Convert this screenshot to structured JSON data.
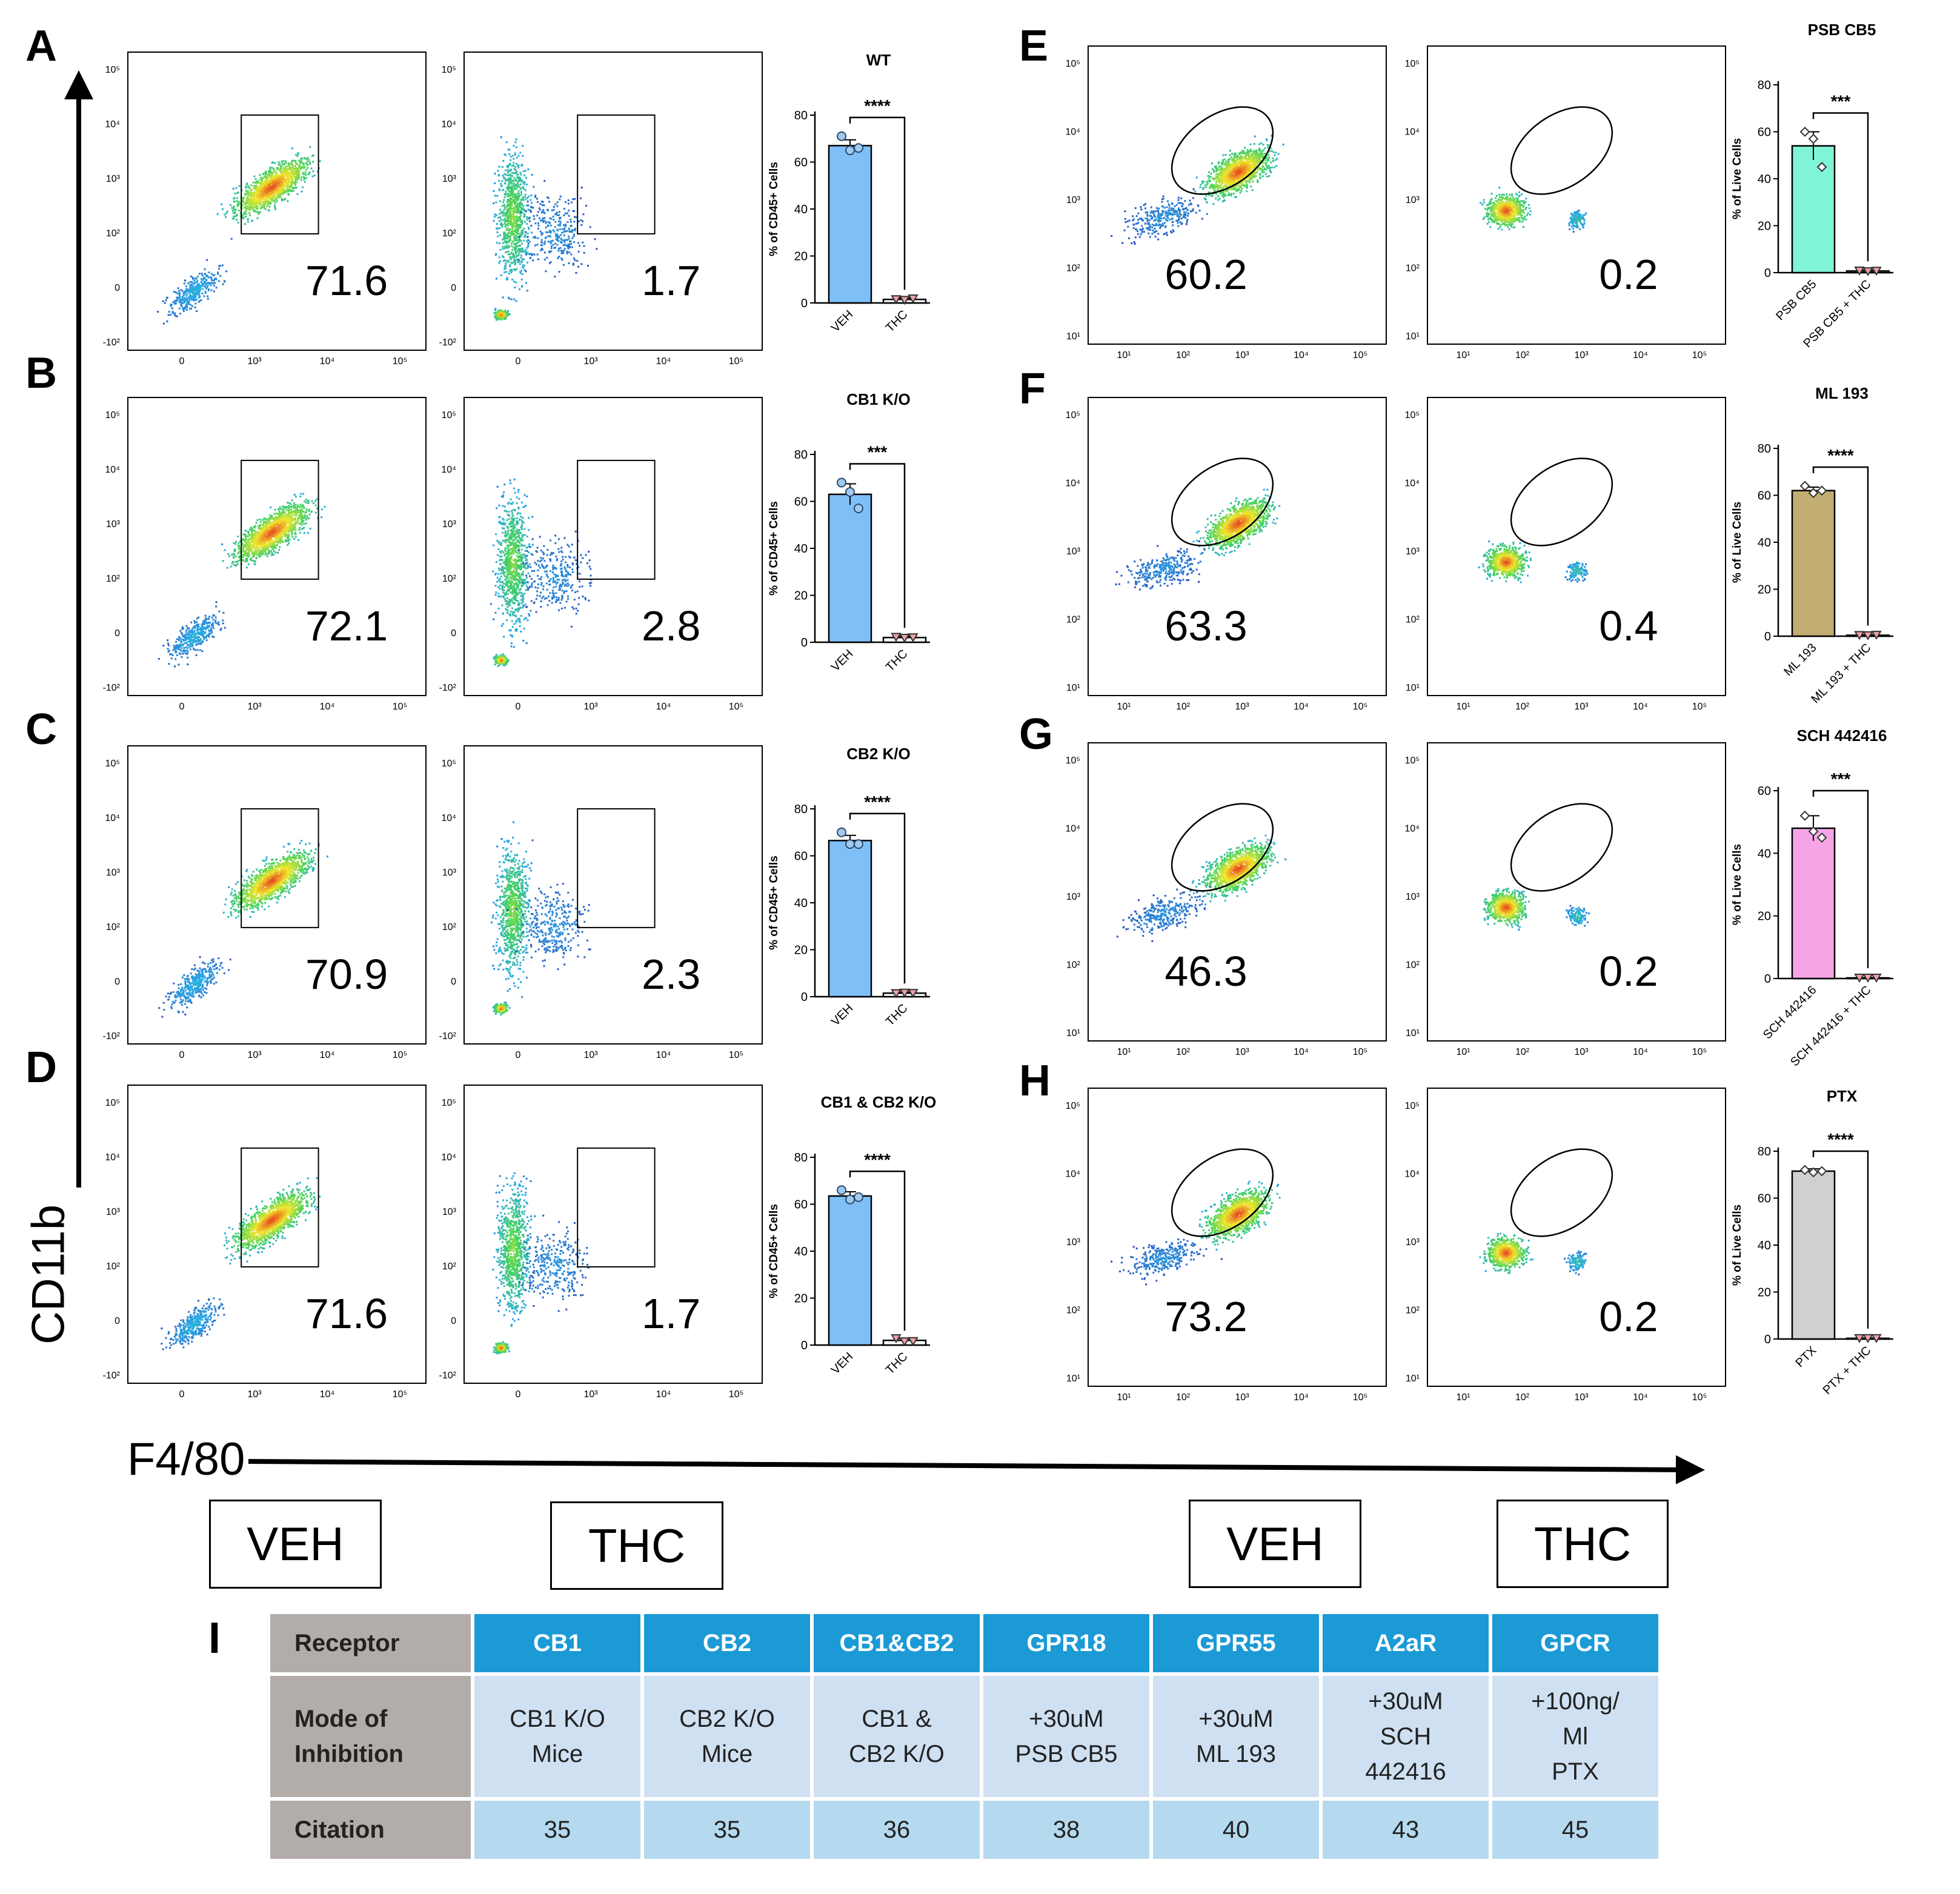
{
  "colors": {
    "WT": "#7fbff8",
    "CB1 K/O": "#7fbff8",
    "CB2 K/O": "#7fbff8",
    "CB1 & CB2 K/O": "#7fbff8",
    "PSB CB5": "#80f4d6",
    "ML 193": "#c2ad72",
    "SCH 442416": "#f6a6e6",
    "PTX": "#d0d0d0",
    "table_header": "#1b9ad6",
    "table_mode": "#cfe0f2",
    "table_cite": "#b5d9ef",
    "table_rowhead": "#b3adaa"
  },
  "axes": {
    "y_label": "CD11b",
    "x_label": "F4/80"
  },
  "conditions": {
    "left_veh": "VEH",
    "left_thc": "THC",
    "right_veh": "VEH",
    "right_thc": "THC"
  },
  "flow_ticks": {
    "y_left": [
      "10⁵",
      "10⁴",
      "10³",
      "10²",
      "0",
      "-10²"
    ],
    "x_left": [
      "0",
      "10³",
      "10⁴",
      "10⁵"
    ],
    "y_right": [
      "10⁵",
      "10⁴",
      "10³",
      "10²",
      "10¹"
    ],
    "x_right": [
      "10¹",
      "10²",
      "10³",
      "10⁴",
      "10⁵"
    ]
  },
  "panels": [
    {
      "letter": "A",
      "veh_percent": "71.6",
      "thc_percent": "1.7"
    },
    {
      "letter": "B",
      "veh_percent": "72.1",
      "thc_percent": "2.8"
    },
    {
      "letter": "C",
      "veh_percent": "70.9",
      "thc_percent": "2.3"
    },
    {
      "letter": "D",
      "veh_percent": "71.6",
      "thc_percent": "1.7"
    },
    {
      "letter": "E",
      "veh_percent": "60.2",
      "thc_percent": "0.2"
    },
    {
      "letter": "F",
      "veh_percent": "63.3",
      "thc_percent": "0.4"
    },
    {
      "letter": "G",
      "veh_percent": "46.3",
      "thc_percent": "0.2"
    },
    {
      "letter": "H",
      "veh_percent": "73.2",
      "thc_percent": "0.2"
    }
  ],
  "chart_data": [
    {
      "type": "bar",
      "title": "WT",
      "ylabel": "% of CD45+ Cells",
      "ylim": [
        0,
        80
      ],
      "yticks": [
        "0",
        "20",
        "40",
        "60",
        "80"
      ],
      "categories": [
        "VEH",
        "THC"
      ],
      "values": [
        67,
        1.5
      ],
      "errors": [
        2.5,
        0.6
      ],
      "points": [
        [
          71,
          65,
          66
        ],
        [
          1.5,
          1.2,
          1.8
        ]
      ],
      "significance": "****"
    },
    {
      "type": "bar",
      "title": "CB1 K/O",
      "ylabel": "% of CD45+ Cells",
      "ylim": [
        0,
        80
      ],
      "yticks": [
        "0",
        "20",
        "40",
        "60",
        "80"
      ],
      "categories": [
        "VEH",
        "THC"
      ],
      "values": [
        63,
        2
      ],
      "errors": [
        4.5,
        0.6
      ],
      "points": [
        [
          68,
          64,
          57
        ],
        [
          2.2,
          1.8,
          2.0
        ]
      ],
      "significance": "***"
    },
    {
      "type": "bar",
      "title": "CB2 K/O",
      "ylabel": "% of CD45+ Cells",
      "ylim": [
        0,
        80
      ],
      "yticks": [
        "0",
        "20",
        "40",
        "60",
        "80"
      ],
      "categories": [
        "VEH",
        "THC"
      ],
      "values": [
        66.5,
        1.5
      ],
      "errors": [
        2.2,
        0.4
      ],
      "points": [
        [
          70,
          65,
          65
        ],
        [
          1.4,
          1.6,
          1.5
        ]
      ],
      "significance": "****"
    },
    {
      "type": "bar",
      "title": "CB1 & CB2 K/O",
      "ylabel": "% of CD45+ Cells",
      "ylim": [
        0,
        80
      ],
      "yticks": [
        "0",
        "20",
        "40",
        "60",
        "80"
      ],
      "categories": [
        "VEH",
        "THC"
      ],
      "values": [
        63.5,
        2
      ],
      "errors": [
        1.8,
        0.8
      ],
      "points": [
        [
          66,
          62,
          63
        ],
        [
          2.8,
          1.5,
          1.6
        ]
      ],
      "significance": "****"
    },
    {
      "type": "bar",
      "title": "PSB CB5",
      "ylabel": "% of Live Cells",
      "ylim": [
        0,
        80
      ],
      "yticks": [
        "0",
        "20",
        "40",
        "60",
        "80"
      ],
      "categories": [
        "PSB CB5",
        "PSB CB5 + THC"
      ],
      "values": [
        54,
        0.7
      ],
      "errors": [
        6,
        0.3
      ],
      "points": [
        [
          60,
          57,
          45
        ],
        [
          0.8,
          0.5,
          0.7
        ]
      ],
      "significance": "***"
    },
    {
      "type": "bar",
      "title": "ML 193",
      "ylabel": "% of Live Cells",
      "ylim": [
        0,
        80
      ],
      "yticks": [
        "0",
        "20",
        "40",
        "60",
        "80"
      ],
      "categories": [
        "ML 193",
        "ML 193 + THC"
      ],
      "values": [
        62,
        0.4
      ],
      "errors": [
        1.5,
        0.2
      ],
      "points": [
        [
          64,
          61,
          62
        ],
        [
          0.4,
          0.3,
          0.5
        ]
      ],
      "significance": "****"
    },
    {
      "type": "bar",
      "title": "SCH 442416",
      "ylabel": "% of Live Cells",
      "ylim": [
        0,
        60
      ],
      "yticks": [
        "0",
        "20",
        "40",
        "60"
      ],
      "categories": [
        "SCH 442416",
        "SCH 442416 + THC"
      ],
      "values": [
        48,
        0.2
      ],
      "errors": [
        4,
        0.1
      ],
      "points": [
        [
          52,
          47,
          45
        ],
        [
          0.2,
          0.2,
          0.2
        ]
      ],
      "significance": "***"
    },
    {
      "type": "bar",
      "title": "PTX",
      "ylabel": "% of Live Cells",
      "ylim": [
        0,
        80
      ],
      "yticks": [
        "0",
        "20",
        "40",
        "60",
        "80"
      ],
      "categories": [
        "PTX",
        "PTX + THC"
      ],
      "values": [
        71.5,
        0.3
      ],
      "errors": [
        1,
        0.1
      ],
      "points": [
        [
          72,
          71,
          71.5
        ],
        [
          0.3,
          0.3,
          0.3
        ]
      ],
      "significance": "****"
    }
  ],
  "table": {
    "panel_letter": "I",
    "row_labels": [
      "Receptor",
      "Mode of Inhibition",
      "Citation"
    ],
    "receptors": [
      "CB1",
      "CB2",
      "CB1&CB2",
      "GPR18",
      "GPR55",
      "A2aR",
      "GPCR"
    ],
    "modes": [
      [
        "CB1 K/O",
        "Mice"
      ],
      [
        "CB2 K/O",
        "Mice"
      ],
      [
        "CB1 &",
        "CB2 K/O"
      ],
      [
        "+30uM",
        "PSB CB5"
      ],
      [
        "+30uM",
        "ML 193"
      ],
      [
        "+30uM",
        "SCH",
        "442416"
      ],
      [
        "+100ng/",
        "Ml",
        "PTX"
      ]
    ],
    "citations": [
      "35",
      "35",
      "36",
      "38",
      "40",
      "43",
      "45"
    ]
  }
}
